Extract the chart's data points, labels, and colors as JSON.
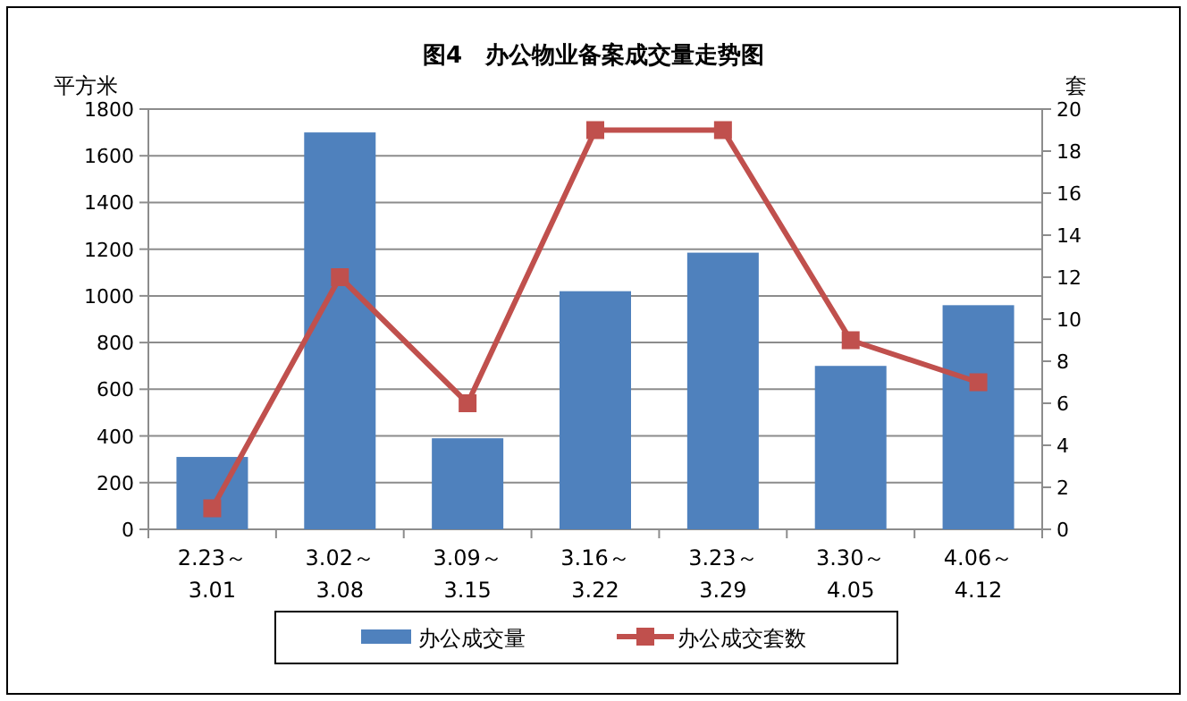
{
  "chart_data": {
    "type": "bar",
    "title": "图4　办公物业备案成交量走势图",
    "ylabel": "平方米",
    "y2label": "套",
    "categories": [
      "2.23～\n3.01",
      "3.02～\n3.08",
      "3.09～\n3.15",
      "3.16～\n3.22",
      "3.23～\n3.29",
      "3.30～\n4.05",
      "4.06～\n4.12"
    ],
    "series": [
      {
        "name": "办公成交量",
        "color": "#4f81bd",
        "values": [
          310,
          1700,
          390,
          1020,
          1185,
          700,
          960
        ]
      },
      {
        "name": "办公成交套数",
        "type": "line",
        "axis": "y2",
        "color": "#c0504d",
        "marker": "square",
        "values": [
          1,
          12,
          6,
          19,
          19,
          9,
          7
        ]
      }
    ],
    "ylim": [
      0,
      1800
    ],
    "yticks": [
      0,
      200,
      400,
      600,
      800,
      1000,
      1200,
      1400,
      1600,
      1800
    ],
    "y2lim": [
      0,
      20
    ],
    "y2ticks": [
      0,
      2,
      4,
      6,
      8,
      10,
      12,
      14,
      16,
      18,
      20
    ],
    "grid": "y",
    "legend": "bottom"
  }
}
